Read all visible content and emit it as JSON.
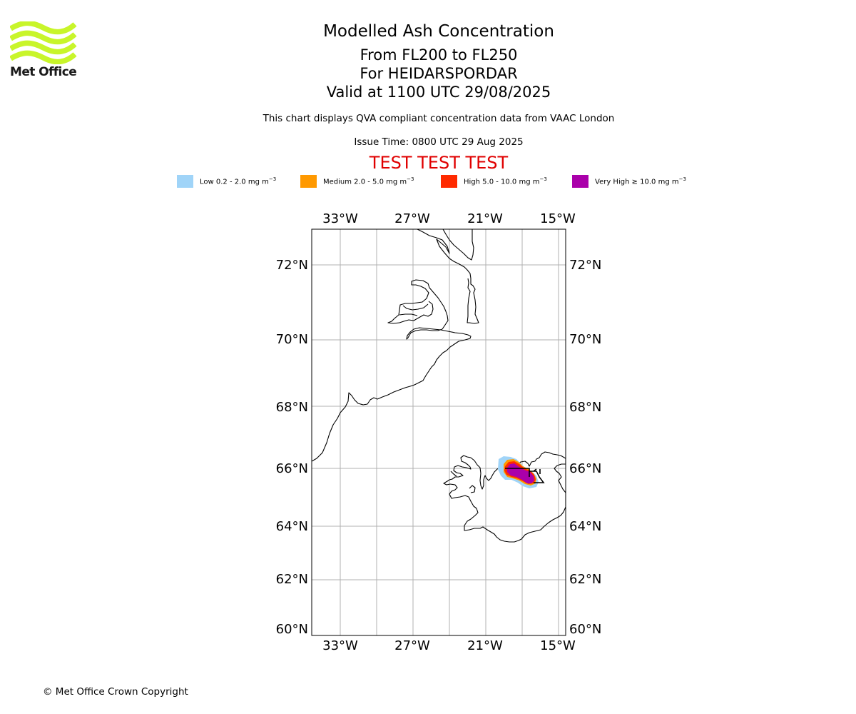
{
  "logo": {
    "text": "Met Office",
    "wave_color": "#c8f52a"
  },
  "titles": {
    "main": "Modelled Ash Concentration",
    "levels": "From FL200 to FL250",
    "volcano": "For HEIDARSPORDAR",
    "valid": "Valid at 1100 UTC 29/08/2025",
    "compliance": "This chart displays QVA compliant concentration data from VAAC London",
    "issue_time": "Issue Time: 0800 UTC 29 Aug 2025",
    "test_banner": "TEST TEST TEST",
    "test_color": "#e00000"
  },
  "legend": [
    {
      "label": "Low 0.2 - 2.0 mg m",
      "unit_exp": "−3",
      "color": "#a0d4f8"
    },
    {
      "label": "Medium 2.0 - 5.0 mg m",
      "unit_exp": "−3",
      "color": "#ff9900"
    },
    {
      "label": "High 5.0 - 10.0 mg m",
      "unit_exp": "−3",
      "color": "#ff2a00"
    },
    {
      "label": "Very High  ≥  10.0 mg m",
      "unit_exp": "−3",
      "color": "#aa00aa"
    }
  ],
  "map": {
    "projection": "polar stereographic",
    "lon_labels": [
      "33°W",
      "27°W",
      "21°W",
      "15°W"
    ],
    "lat_labels": [
      "72°N",
      "70°N",
      "68°N",
      "66°N",
      "64°N",
      "62°N",
      "60°N"
    ],
    "regions": [
      "Greenland",
      "Iceland"
    ],
    "gridlines": true,
    "ash_cloud": {
      "levels": [
        "low",
        "medium",
        "high",
        "very_high"
      ]
    }
  },
  "copyright": "© Met Office Crown Copyright"
}
